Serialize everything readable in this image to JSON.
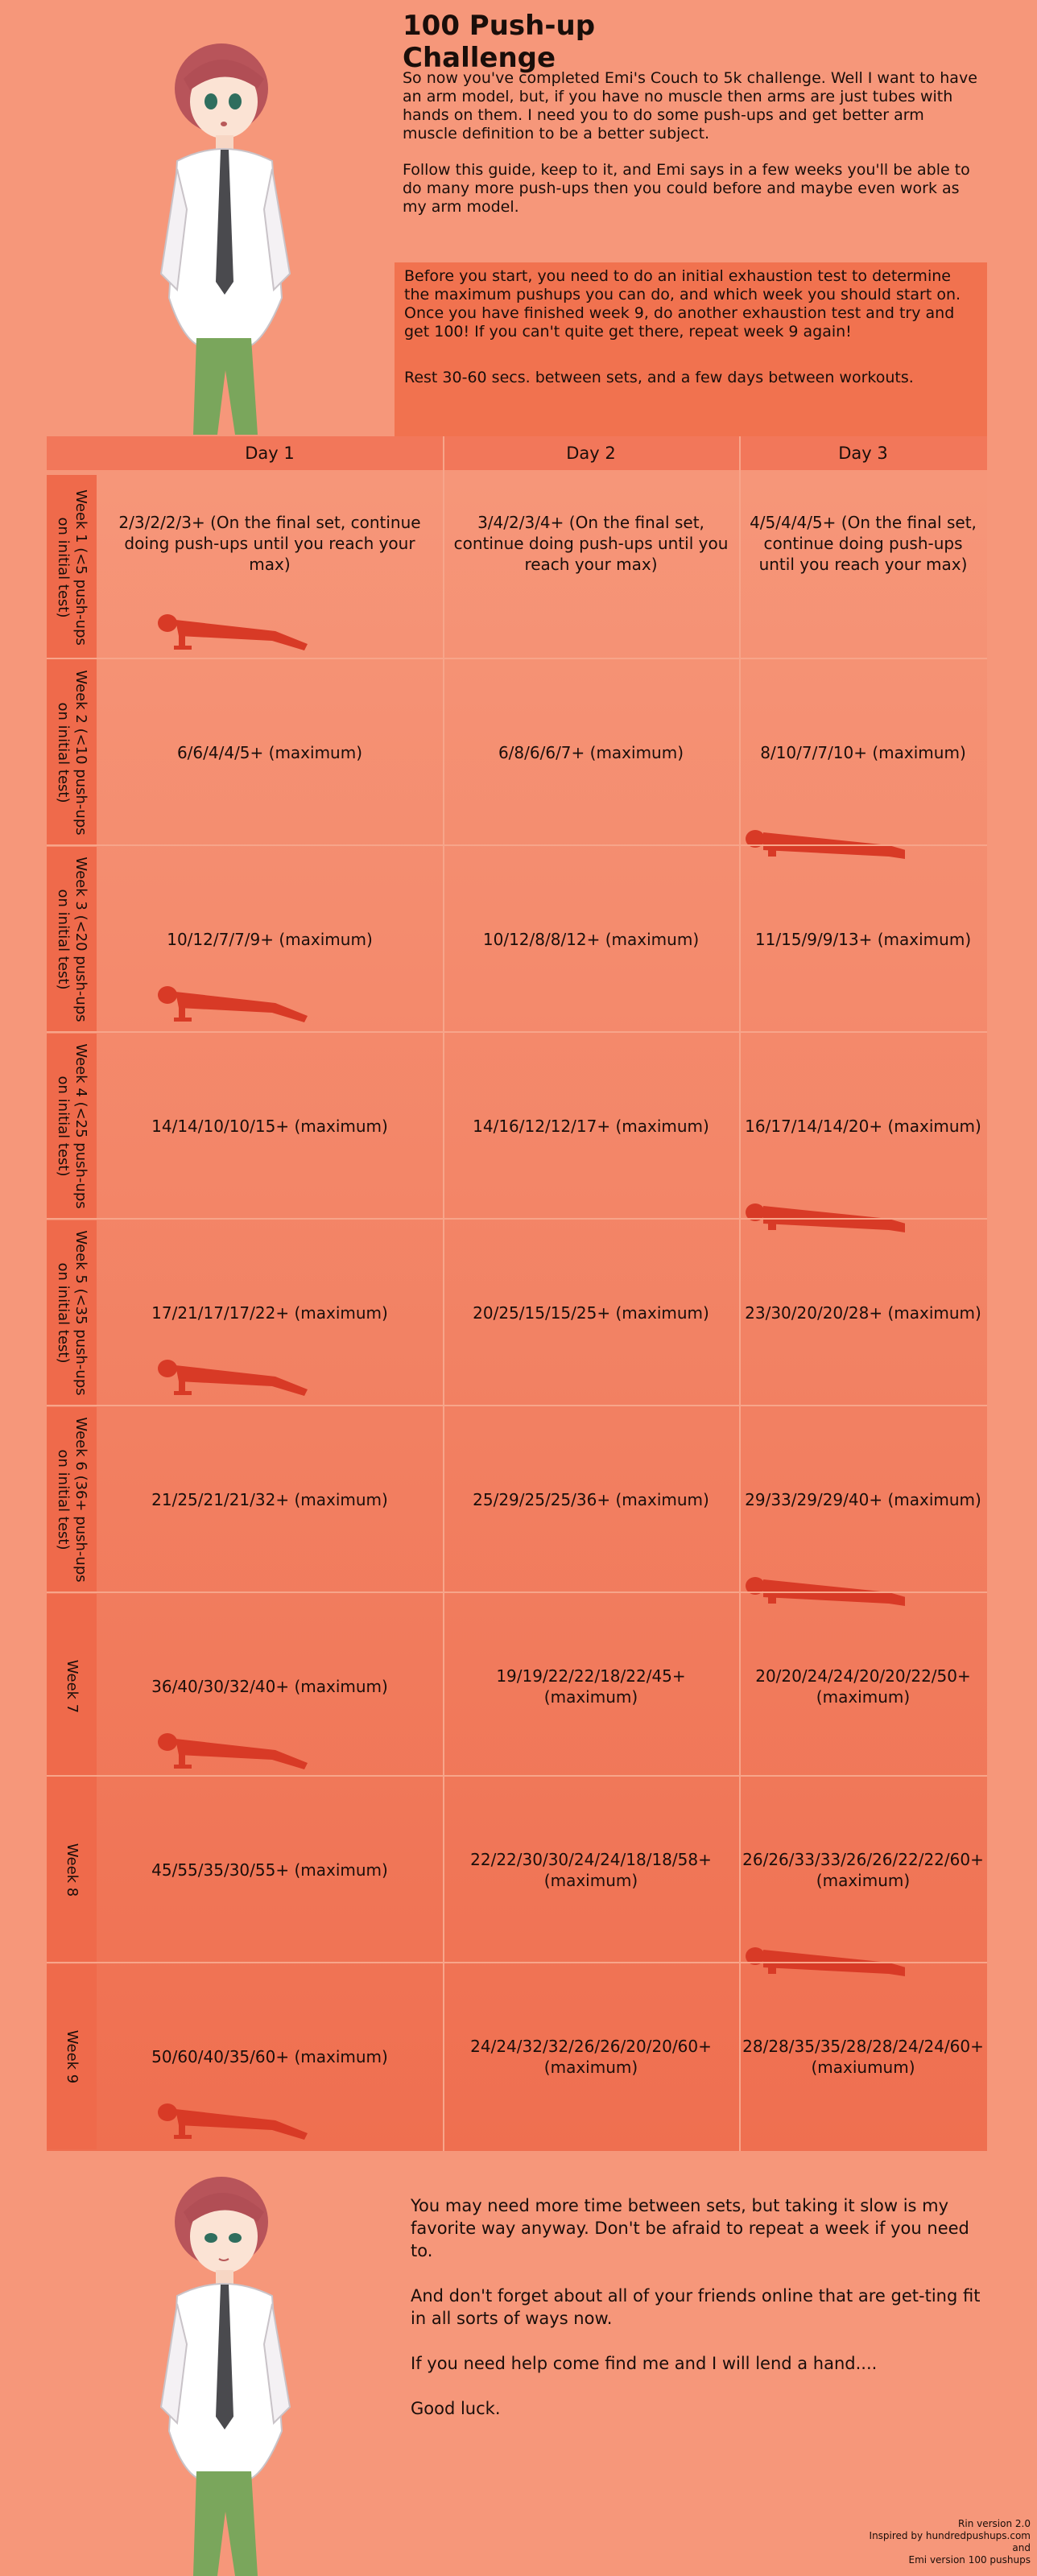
{
  "title": "100 Push-up Challenge",
  "intro": [
    "So now you've completed Emi's Couch to 5k challenge. Well I want to have an arm model, but, if you have no muscle then arms are just tubes with hands on them. I need you to do some push-ups and get better arm muscle definition to be a better subject.",
    "Follow this guide, keep to it, and Emi says in a few weeks you'll be able to do many more push-ups then you could before and maybe even work as my arm model."
  ],
  "note": [
    "Before you start, you need to do an initial exhaustion test to determine the maximum pushups you can do, and which week you should start on. Once you have finished week 9, do another exhaustion test and try and get 100! If you can't quite get there, repeat week 9 again!",
    "Rest 30-60 secs. between sets, and a few days between workouts."
  ],
  "days": [
    "Day 1",
    "Day 2",
    "Day 3"
  ],
  "weeks": [
    {
      "label": "Week 1 (<5 push-ups on initial test)",
      "cells": [
        "2/3/2/2/3+ (On the final set, continue doing push-ups until you reach your max)",
        "3/4/2/3/4+ (On the final set, continue doing push-ups until you reach your max)",
        "4/5/4/4/5+ (On the final set, continue doing push-ups until you reach your max)"
      ]
    },
    {
      "label": "Week 2 (<10 push-ups on initial test)",
      "cells": [
        "6/6/4/4/5+ (maximum)",
        "6/8/6/6/7+ (maximum)",
        "8/10/7/7/10+ (maximum)"
      ]
    },
    {
      "label": "Week 3 (<20 push-ups on initial test)",
      "cells": [
        "10/12/7/7/9+ (maximum)",
        "10/12/8/8/12+ (maximum)",
        "11/15/9/9/13+ (maximum)"
      ]
    },
    {
      "label": "Week 4 (<25 push-ups on initial test)",
      "cells": [
        "14/14/10/10/15+ (maximum)",
        "14/16/12/12/17+ (maximum)",
        "16/17/14/14/20+ (maximum)"
      ]
    },
    {
      "label": "Week 5 (<35 push-ups on initial test)",
      "cells": [
        "17/21/17/17/22+ (maximum)",
        "20/25/15/15/25+ (maximum)",
        "23/30/20/20/28+ (maximum)"
      ]
    },
    {
      "label": "Week 6 (36+ push-ups on initial test)",
      "cells": [
        "21/25/21/21/32+ (maximum)",
        "25/29/25/25/36+ (maximum)",
        "29/33/29/29/40+ (maximum)"
      ]
    },
    {
      "label": "Week 7",
      "cells": [
        "36/40/30/32/40+ (maximum)",
        "19/19/22/22/18/22/45+ (maximum)",
        "20/20/24/24/20/20/22/50+ (maximum)"
      ]
    },
    {
      "label": "Week 8",
      "cells": [
        "45/55/35/30/55+ (maximum)",
        "22/22/30/30/24/24/18/18/58+ (maximum)",
        "26/26/33/33/26/26/22/22/60+ (maximum)"
      ]
    },
    {
      "label": "Week 9",
      "cells": [
        "50/60/40/35/60+ (maximum)",
        "24/24/32/32/26/26/20/20/60+ (maximum)",
        "28/28/35/35/28/28/24/24/60+ (maxiumum)"
      ]
    }
  ],
  "outro": [
    "You may need more time between sets, but taking it slow is my favorite way anyway. Don't be afraid to repeat a week if you need to.",
    "And don't forget about all of your friends online that are get-ting fit in all sorts of ways now.",
    "If you need help come find me and I will lend a hand....",
    "Good luck."
  ],
  "credits": [
    "Rin version 2.0",
    "Inspired by hundredpushups.com",
    "and",
    "Emi version 100 pushups"
  ],
  "colors": {
    "background": "#f6977a",
    "accent": "#ef6a4b",
    "silhouette": "#d83a26"
  }
}
